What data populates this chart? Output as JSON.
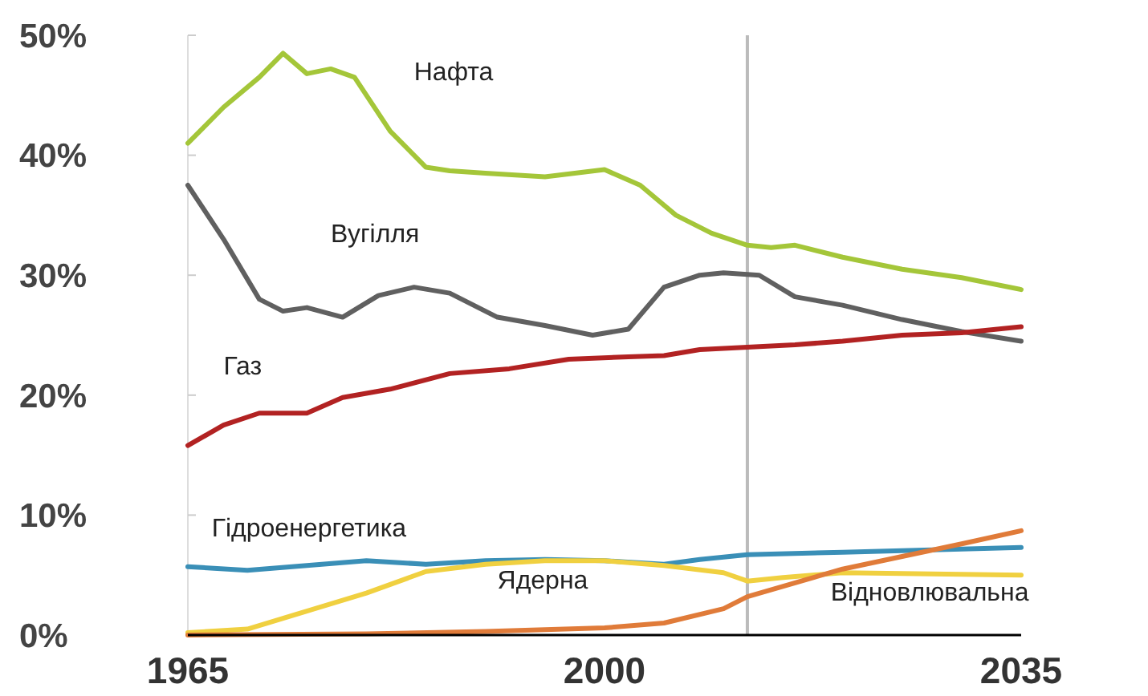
{
  "chart_data": {
    "type": "line",
    "series": [
      {
        "name": "Нафта",
        "color": "#a4c639",
        "x": [
          1965,
          1968,
          1971,
          1973,
          1975,
          1977,
          1979,
          1982,
          1985,
          1987,
          1990,
          1995,
          2000,
          2003,
          2006,
          2009,
          2012,
          2014,
          2016,
          2020,
          2025,
          2030,
          2035
        ],
        "values": [
          41,
          44,
          46.5,
          48.5,
          46.8,
          47.2,
          46.5,
          42,
          39,
          38.7,
          38.5,
          38.2,
          38.8,
          37.5,
          35,
          33.5,
          32.5,
          32.3,
          32.5,
          31.5,
          30.5,
          29.8,
          28.8
        ]
      },
      {
        "name": "Вугілля",
        "color": "#606060",
        "x": [
          1965,
          1968,
          1971,
          1973,
          1975,
          1978,
          1981,
          1984,
          1987,
          1991,
          1995,
          1999,
          2002,
          2005,
          2008,
          2010,
          2013,
          2016,
          2020,
          2025,
          2030,
          2035
        ],
        "values": [
          37.5,
          33,
          28,
          27,
          27.3,
          26.5,
          28.3,
          29,
          28.5,
          26.5,
          25.8,
          25,
          25.5,
          29,
          30,
          30.2,
          30,
          28.2,
          27.5,
          26.3,
          25.3,
          24.5
        ]
      },
      {
        "name": "Газ",
        "color": "#b22222",
        "x": [
          1965,
          1968,
          1971,
          1975,
          1978,
          1982,
          1987,
          1992,
          1997,
          2002,
          2005,
          2008,
          2012,
          2016,
          2020,
          2025,
          2030,
          2035
        ],
        "values": [
          15.8,
          17.5,
          18.5,
          18.5,
          19.8,
          20.5,
          21.8,
          22.2,
          23,
          23.2,
          23.3,
          23.8,
          24,
          24.2,
          24.5,
          25,
          25.2,
          25.7
        ]
      },
      {
        "name": "Гідроенергетика",
        "color": "#3a8fb7",
        "x": [
          1965,
          1970,
          1975,
          1980,
          1985,
          1990,
          1995,
          2000,
          2005,
          2008,
          2012,
          2020,
          2035
        ],
        "values": [
          5.7,
          5.4,
          5.8,
          6.2,
          5.9,
          6.2,
          6.3,
          6.2,
          5.9,
          6.3,
          6.7,
          6.9,
          7.3
        ]
      },
      {
        "name": "Ядерна",
        "color": "#f0d040",
        "x": [
          1965,
          1970,
          1975,
          1980,
          1985,
          1990,
          1995,
          2000,
          2005,
          2010,
          2012,
          2015,
          2020,
          2035
        ],
        "values": [
          0.2,
          0.5,
          2,
          3.5,
          5.3,
          5.9,
          6.2,
          6.2,
          5.8,
          5.2,
          4.5,
          4.8,
          5.2,
          5
        ]
      },
      {
        "name": "Відновлювальна",
        "color": "#e07b39",
        "x": [
          1965,
          1980,
          1990,
          2000,
          2005,
          2010,
          2012,
          2020,
          2030,
          2035
        ],
        "values": [
          0,
          0.1,
          0.3,
          0.6,
          1,
          2.2,
          3.2,
          5.5,
          7.6,
          8.7
        ]
      }
    ],
    "xlim": [
      1965,
      2035
    ],
    "xticks": [
      1965,
      2000,
      2035
    ],
    "ylim": [
      0,
      50
    ],
    "yticks": [
      {
        "value": 0,
        "label": "0%"
      },
      {
        "value": 10,
        "label": "10%"
      },
      {
        "value": 20,
        "label": "20%"
      },
      {
        "value": 30,
        "label": "30%"
      },
      {
        "value": 40,
        "label": "40%"
      },
      {
        "value": 50,
        "label": "50%"
      }
    ],
    "ref_lines": [
      {
        "axis": "x",
        "value": 2012,
        "color": "#bbbbbb"
      }
    ],
    "grid": false,
    "legend": false,
    "marker": "none",
    "line_style": "solid"
  }
}
